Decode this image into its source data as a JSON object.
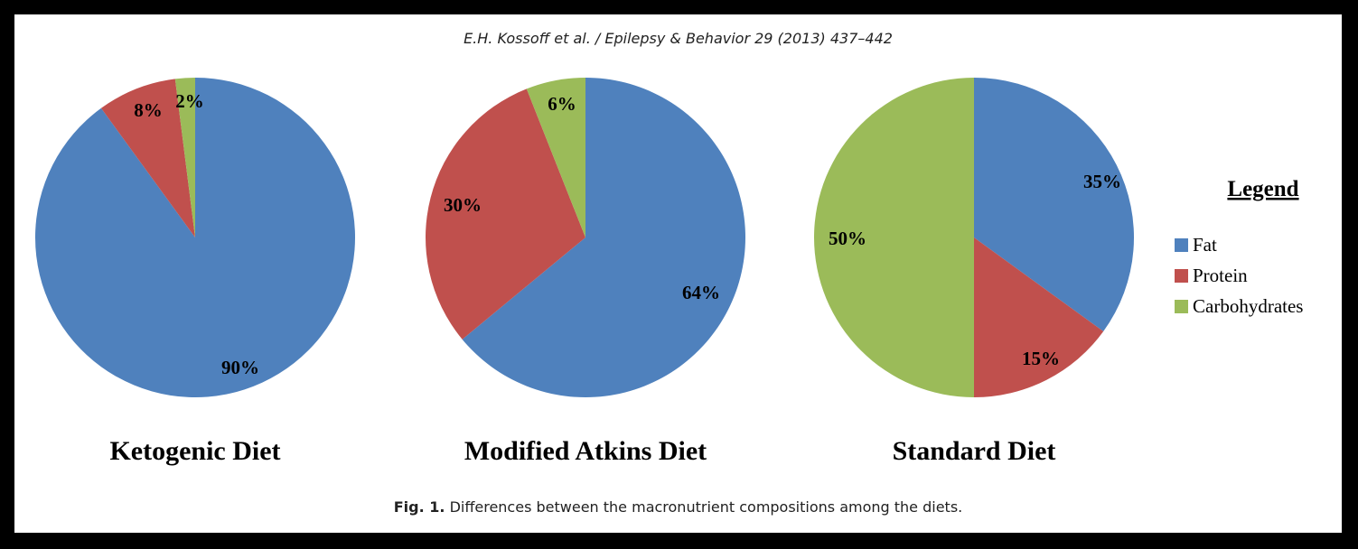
{
  "header": "E.H. Kossoff et al. / Epilepsy & Behavior 29 (2013) 437–442",
  "caption": {
    "prefix": "Fig. 1.",
    "text": "Differences between the macronutrient compositions among the diets."
  },
  "colors": {
    "Fat": "#4F81BD",
    "Protein": "#C0504D",
    "Carbohydrates": "#9BBB59"
  },
  "chart_data": [
    {
      "type": "pie",
      "title": "Ketogenic Diet",
      "labels": [
        "Fat",
        "Protein",
        "Carbohydrates"
      ],
      "values": [
        90,
        8,
        2
      ],
      "value_labels": [
        "90%",
        "8%",
        "2%"
      ]
    },
    {
      "type": "pie",
      "title": "Modified Atkins Diet",
      "labels": [
        "Fat",
        "Protein",
        "Carbohydrates"
      ],
      "values": [
        64,
        30,
        6
      ],
      "value_labels": [
        "64%",
        "30%",
        "6%"
      ]
    },
    {
      "type": "pie",
      "title": "Standard Diet",
      "labels": [
        "Fat",
        "Protein",
        "Carbohydrates"
      ],
      "values": [
        35,
        15,
        50
      ],
      "value_labels": [
        "35%",
        "15%",
        "50%"
      ]
    }
  ],
  "legend": {
    "title": "Legend",
    "items": [
      "Fat",
      "Protein",
      "Carbohydrates"
    ]
  }
}
